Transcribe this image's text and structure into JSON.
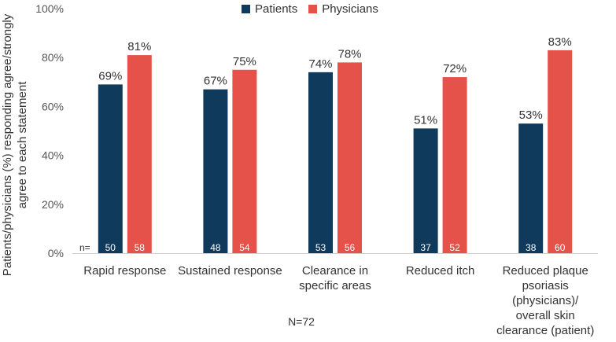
{
  "chart_data": {
    "type": "bar",
    "categories": [
      [
        "Rapid response"
      ],
      [
        "Sustained response"
      ],
      [
        "Clearance in",
        "specific areas"
      ],
      [
        "Reduced itch"
      ],
      [
        "Reduced plaque",
        "psoriasis",
        "(physicians)/",
        "overall skin",
        "clearance (patient)"
      ]
    ],
    "series": [
      {
        "name": "Patients",
        "color": "#0f3a5c",
        "values": [
          69,
          67,
          74,
          51,
          53
        ],
        "labels": [
          "69%",
          "67%",
          "74%",
          "51%",
          "53%"
        ],
        "n": [
          "50",
          "48",
          "53",
          "37",
          "38"
        ]
      },
      {
        "name": "Physicians",
        "color": "#e4524a",
        "values": [
          81,
          75,
          78,
          72,
          83
        ],
        "labels": [
          "81%",
          "75%",
          "78%",
          "72%",
          "83%"
        ],
        "n": [
          "58",
          "54",
          "56",
          "52",
          "60"
        ]
      }
    ],
    "ylim": [
      0,
      100
    ],
    "yticks": [
      "0%",
      "20%",
      "40%",
      "60%",
      "80%",
      "100%"
    ],
    "ylabel": [
      "Patients/physicians (%) responding agree/strongly",
      "agree to each statement"
    ],
    "n_prefix": "n=",
    "footnote": "N=72"
  }
}
